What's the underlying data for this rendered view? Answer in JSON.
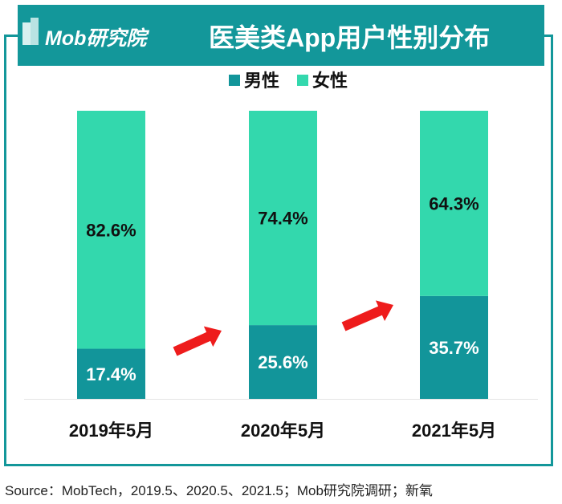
{
  "header": {
    "logo": "Mob研究院",
    "title": "医美类App用户性别分布"
  },
  "source": "Source：MobTech，2019.5、2020.5、2021.5；Mob研究院调研；新氧",
  "colors": {
    "male": "#12959a",
    "female": "#33d8ad",
    "header": "#13979a",
    "arrow": "#ee1c1c"
  },
  "chart_data": {
    "type": "bar",
    "stacked": true,
    "percent": true,
    "categories": [
      "2019年5月",
      "2020年5月",
      "2021年5月"
    ],
    "series": [
      {
        "name": "男性",
        "values": [
          17.4,
          25.6,
          35.7
        ],
        "labels": [
          "17.4%",
          "25.6%",
          "35.7%"
        ]
      },
      {
        "name": "女性",
        "values": [
          82.6,
          74.4,
          64.3
        ],
        "labels": [
          "82.6%",
          "74.4%",
          "64.3%"
        ]
      }
    ],
    "ylim": [
      0,
      100
    ],
    "legend": "top-center",
    "grid": false,
    "annotations": [
      "red-arrow-up between 2019 and 2020",
      "red-arrow-up between 2020 and 2021"
    ]
  }
}
